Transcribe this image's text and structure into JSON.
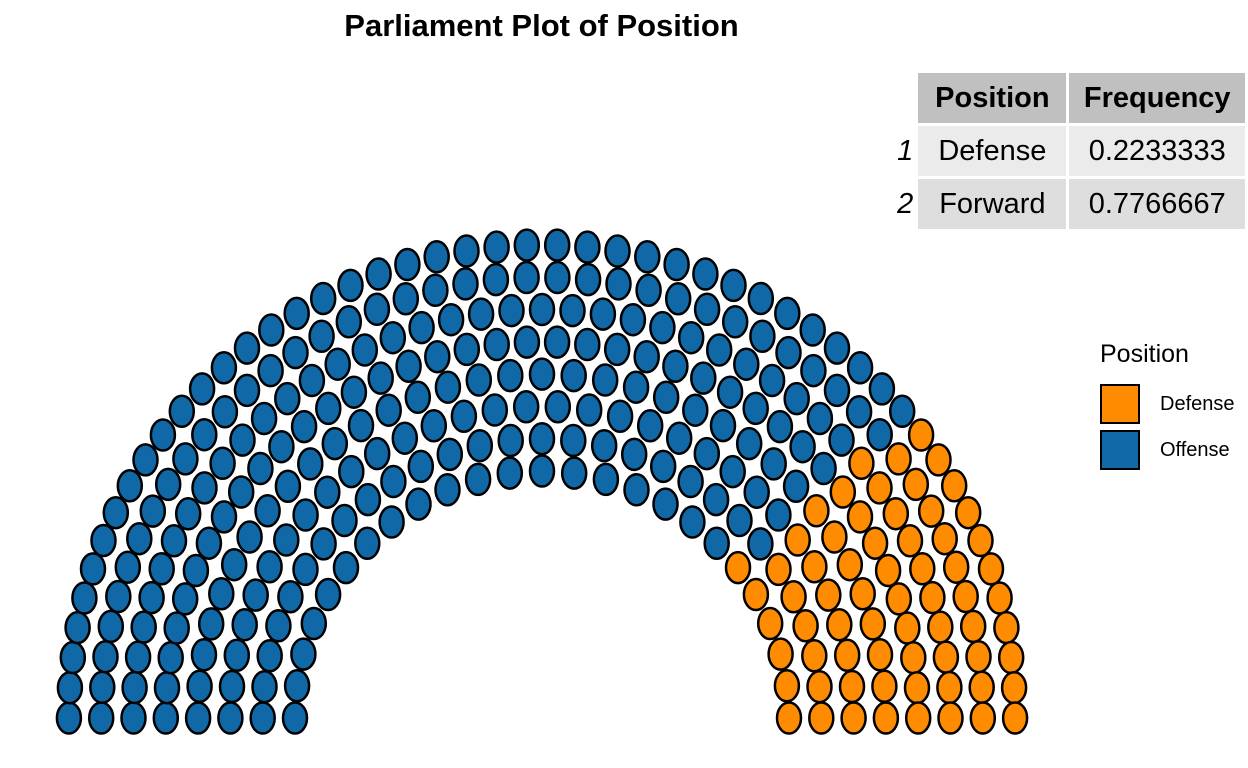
{
  "chart_data": {
    "type": "parliament",
    "title": "Parliament Plot of Position",
    "total_seats": 300,
    "series": [
      {
        "name": "Defense",
        "seats": 67,
        "color": "#FF8C00"
      },
      {
        "name": "Offense",
        "seats": 233,
        "color": "#1068A6"
      }
    ],
    "seat_order": [
      "Offense",
      "Defense"
    ],
    "legend": {
      "title": "Position",
      "placement": "right",
      "entries": [
        {
          "label": "Defense",
          "color": "#FF8C00"
        },
        {
          "label": "Offense",
          "color": "#1068A6"
        }
      ]
    }
  },
  "table": {
    "headers": [
      "",
      "Position",
      "Frequency"
    ],
    "rows": [
      {
        "rowname": "1",
        "position": "Defense",
        "frequency": "0.2233333"
      },
      {
        "rowname": "2",
        "position": "Forward",
        "frequency": "0.7766667"
      }
    ]
  }
}
